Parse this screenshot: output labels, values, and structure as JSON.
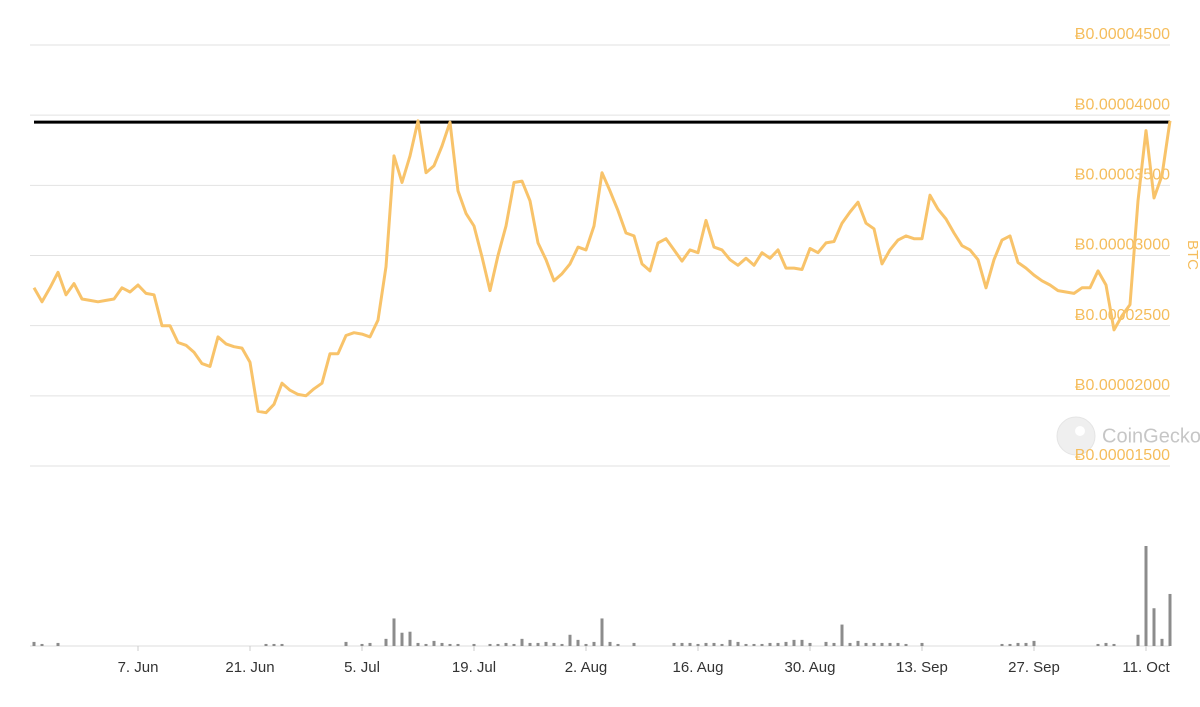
{
  "chart_data": {
    "type": "line",
    "x": [
      "25. May",
      "26. May",
      "27. May",
      "28. May",
      "29. May",
      "30. May",
      "31. May",
      "1. Jun",
      "2. Jun",
      "3. Jun",
      "4. Jun",
      "5. Jun",
      "6. Jun",
      "7. Jun",
      "8. Jun",
      "9. Jun",
      "10. Jun",
      "11. Jun",
      "12. Jun",
      "13. Jun",
      "14. Jun",
      "15. Jun",
      "16. Jun",
      "17. Jun",
      "18. Jun",
      "19. Jun",
      "20. Jun",
      "21. Jun",
      "22. Jun",
      "23. Jun",
      "24. Jun",
      "25. Jun",
      "26. Jun",
      "27. Jun",
      "28. Jun",
      "29. Jun",
      "30. Jun",
      "1. Jul",
      "2. Jul",
      "3. Jul",
      "4. Jul",
      "5. Jul",
      "6. Jul",
      "7. Jul",
      "8. Jul",
      "9. Jul",
      "10. Jul",
      "11. Jul",
      "12. Jul",
      "13. Jul",
      "14. Jul",
      "15. Jul",
      "16. Jul",
      "17. Jul",
      "18. Jul",
      "19. Jul",
      "20. Jul",
      "21. Jul",
      "22. Jul",
      "23. Jul",
      "24. Jul",
      "25. Jul",
      "26. Jul",
      "27. Jul",
      "28. Jul",
      "29. Jul",
      "30. Jul",
      "31. Jul",
      "1. Aug",
      "2. Aug",
      "3. Aug",
      "4. Aug",
      "5. Aug",
      "6. Aug",
      "7. Aug",
      "8. Aug",
      "9. Aug",
      "10. Aug",
      "11. Aug",
      "12. Aug",
      "13. Aug",
      "14. Aug",
      "15. Aug",
      "16. Aug",
      "17. Aug",
      "18. Aug",
      "19. Aug",
      "20. Aug",
      "21. Aug",
      "22. Aug",
      "23. Aug",
      "24. Aug",
      "25. Aug",
      "26. Aug",
      "27. Aug",
      "28. Aug",
      "29. Aug",
      "30. Aug",
      "31. Aug",
      "1. Sep",
      "2. Sep",
      "3. Sep",
      "4. Sep",
      "5. Sep",
      "6. Sep",
      "7. Sep",
      "8. Sep",
      "9. Sep",
      "10. Sep",
      "11. Sep",
      "12. Sep",
      "13. Sep",
      "14. Sep",
      "15. Sep",
      "16. Sep",
      "17. Sep",
      "18. Sep",
      "19. Sep",
      "20. Sep",
      "21. Sep",
      "22. Sep",
      "23. Sep",
      "24. Sep",
      "25. Sep",
      "26. Sep",
      "27. Sep",
      "28. Sep",
      "29. Sep",
      "30. Sep",
      "1. Oct",
      "2. Oct",
      "3. Oct",
      "4. Oct",
      "5. Oct",
      "6. Oct",
      "7. Oct",
      "8. Oct",
      "9. Oct",
      "10. Oct",
      "11. Oct",
      "12. Oct",
      "13. Oct",
      "14. Oct"
    ],
    "values": [
      2.77e-05,
      2.67e-05,
      2.77e-05,
      2.88e-05,
      2.72e-05,
      2.8e-05,
      2.69e-05,
      2.68e-05,
      2.67e-05,
      2.68e-05,
      2.69e-05,
      2.77e-05,
      2.74e-05,
      2.79e-05,
      2.73e-05,
      2.72e-05,
      2.5e-05,
      2.5e-05,
      2.38e-05,
      2.36e-05,
      2.31e-05,
      2.23e-05,
      2.21e-05,
      2.42e-05,
      2.37e-05,
      2.35e-05,
      2.34e-05,
      2.24e-05,
      1.89e-05,
      1.88e-05,
      1.94e-05,
      2.09e-05,
      2.04e-05,
      2.01e-05,
      2e-05,
      2.05e-05,
      2.09e-05,
      2.3e-05,
      2.3e-05,
      2.43e-05,
      2.45e-05,
      2.44e-05,
      2.42e-05,
      2.54e-05,
      2.92e-05,
      3.71e-05,
      3.52e-05,
      3.71e-05,
      3.96e-05,
      3.59e-05,
      3.64e-05,
      3.78e-05,
      3.95e-05,
      3.46e-05,
      3.3e-05,
      3.21e-05,
      2.99e-05,
      2.75e-05,
      3e-05,
      3.21e-05,
      3.52e-05,
      3.53e-05,
      3.39e-05,
      3.09e-05,
      2.97e-05,
      2.82e-05,
      2.87e-05,
      2.94e-05,
      3.06e-05,
      3.04e-05,
      3.21e-05,
      3.59e-05,
      3.46e-05,
      3.32e-05,
      3.16e-05,
      3.14e-05,
      2.94e-05,
      2.89e-05,
      3.09e-05,
      3.12e-05,
      3.04e-05,
      2.96e-05,
      3.04e-05,
      3.02e-05,
      3.25e-05,
      3.06e-05,
      3.04e-05,
      2.97e-05,
      2.93e-05,
      2.98e-05,
      2.93e-05,
      3.02e-05,
      2.98e-05,
      3.04e-05,
      2.91e-05,
      2.91e-05,
      2.9e-05,
      3.05e-05,
      3.02e-05,
      3.09e-05,
      3.1e-05,
      3.23e-05,
      3.31e-05,
      3.38e-05,
      3.23e-05,
      3.19e-05,
      2.94e-05,
      3.04e-05,
      3.11e-05,
      3.14e-05,
      3.12e-05,
      3.12e-05,
      3.43e-05,
      3.33e-05,
      3.26e-05,
      3.16e-05,
      3.07e-05,
      3.04e-05,
      2.97e-05,
      2.77e-05,
      2.97e-05,
      3.11e-05,
      3.14e-05,
      2.95e-05,
      2.91e-05,
      2.86e-05,
      2.82e-05,
      2.79e-05,
      2.75e-05,
      2.74e-05,
      2.73e-05,
      2.77e-05,
      2.77e-05,
      2.89e-05,
      2.79e-05,
      2.47e-05,
      2.57e-05,
      2.65e-05,
      3.39e-05,
      3.89e-05,
      3.41e-05,
      3.57e-05,
      3.96e-05
    ],
    "color": "#f8c36a",
    "volume": [
      4,
      2,
      0,
      3,
      0,
      0,
      0,
      0,
      0,
      0,
      0,
      0,
      0,
      0,
      0,
      0,
      0,
      0,
      0,
      0,
      0,
      0,
      0,
      0,
      0,
      0,
      0,
      0,
      0,
      2,
      2,
      2,
      0,
      0,
      0,
      0,
      0,
      0,
      0,
      4,
      0,
      2,
      3,
      0,
      7,
      27,
      13,
      14,
      3,
      2,
      5,
      3,
      2,
      2,
      0,
      2,
      0,
      2,
      2,
      3,
      2,
      7,
      3,
      3,
      4,
      3,
      2,
      11,
      6,
      2,
      4,
      27,
      4,
      2,
      0,
      3,
      0,
      0,
      0,
      0,
      3,
      3,
      3,
      2,
      3,
      3,
      2,
      6,
      4,
      2,
      2,
      2,
      3,
      3,
      4,
      6,
      6,
      3,
      0,
      4,
      3,
      21,
      3,
      5,
      3,
      3,
      3,
      3,
      3,
      2,
      0,
      3,
      0,
      0,
      0,
      0,
      0,
      0,
      0,
      0,
      0,
      2,
      2,
      3,
      3,
      5,
      0,
      0,
      0,
      0,
      0,
      0,
      0,
      2,
      3,
      2,
      0,
      0,
      11,
      98,
      37,
      7,
      51
    ],
    "volume_color": "#8c8c8c",
    "reference_line": {
      "value": 3.95e-05,
      "color": "#000000"
    },
    "ylim": [
      1.5e-05,
      4.5e-05
    ],
    "yticks": [
      {
        "value": 1.5e-05,
        "label": "Ƀ0.00001500"
      },
      {
        "value": 2e-05,
        "label": "Ƀ0.00002000"
      },
      {
        "value": 2.5e-05,
        "label": "Ƀ0.00002500"
      },
      {
        "value": 3e-05,
        "label": "Ƀ0.00003000"
      },
      {
        "value": 3.5e-05,
        "label": "Ƀ0.00003500"
      },
      {
        "value": 4e-05,
        "label": "Ƀ0.00004000"
      },
      {
        "value": 4.5e-05,
        "label": "Ƀ0.00004500"
      }
    ],
    "xticks": [
      "7. Jun",
      "21. Jun",
      "5. Jul",
      "19. Jul",
      "2. Aug",
      "16. Aug",
      "30. Aug",
      "13. Sep",
      "27. Sep",
      "11. Oct"
    ],
    "y_label": "BTC",
    "watermark": "CoinGecko",
    "grid": true
  }
}
